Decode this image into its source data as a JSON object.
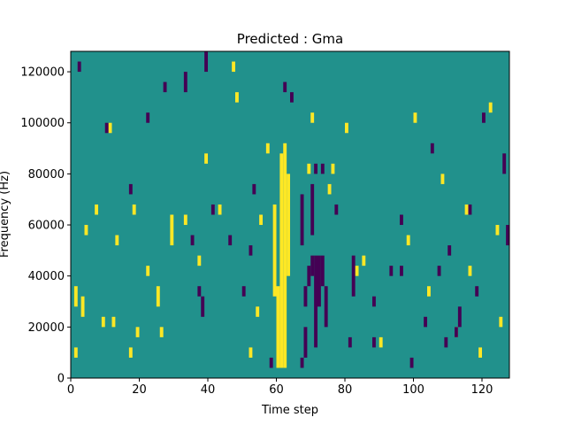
{
  "chart_data": {
    "type": "heatmap",
    "title": "Predicted : Gma",
    "xlabel": "Time step",
    "ylabel": "Frequency (Hz)",
    "xlim": [
      0,
      128
    ],
    "ylim": [
      0,
      128000
    ],
    "x_ticks": [
      0,
      20,
      40,
      60,
      80,
      100,
      120
    ],
    "y_ticks": [
      0,
      20000,
      40000,
      60000,
      80000,
      100000,
      120000
    ],
    "grid": false,
    "legend": "none",
    "cell_size": {
      "time_steps": 1,
      "hz": 4000
    },
    "colors": {
      "background": "#21918c",
      "high": "#fde725",
      "low": "#440154"
    },
    "high_cells": [
      [
        60,
        4000,
        36000
      ],
      [
        61,
        4000,
        88000
      ],
      [
        62,
        4000,
        92000
      ],
      [
        63,
        40000,
        80000
      ],
      [
        59,
        32000,
        68000
      ],
      [
        1,
        8000,
        12000
      ],
      [
        1,
        28000,
        36000
      ],
      [
        3,
        24000,
        32000
      ],
      [
        4,
        56000,
        60000
      ],
      [
        7,
        64000,
        68000
      ],
      [
        9,
        20000,
        24000
      ],
      [
        12,
        20000,
        24000
      ],
      [
        17,
        8000,
        12000
      ],
      [
        18,
        64000,
        68000
      ],
      [
        19,
        16000,
        20000
      ],
      [
        25,
        28000,
        36000
      ],
      [
        26,
        16000,
        20000
      ],
      [
        29,
        52000,
        64000
      ],
      [
        33,
        60000,
        64000
      ],
      [
        37,
        44000,
        48000
      ],
      [
        43,
        64000,
        68000
      ],
      [
        52,
        8000,
        12000
      ],
      [
        54,
        24000,
        28000
      ],
      [
        57,
        88000,
        92000
      ],
      [
        69,
        80000,
        84000
      ],
      [
        75,
        72000,
        76000
      ],
      [
        76,
        80000,
        84000
      ],
      [
        80,
        96000,
        100000
      ],
      [
        85,
        44000,
        48000
      ],
      [
        98,
        52000,
        56000
      ],
      [
        100,
        100000,
        104000
      ],
      [
        108,
        76000,
        80000
      ],
      [
        115,
        64000,
        68000
      ],
      [
        116,
        40000,
        44000
      ],
      [
        122,
        104000,
        108000
      ],
      [
        124,
        56000,
        60000
      ],
      [
        125,
        20000,
        24000
      ],
      [
        22,
        40000,
        44000
      ],
      [
        47,
        120000,
        124000
      ],
      [
        48,
        108000,
        112000
      ],
      [
        11,
        96000,
        100000
      ],
      [
        13,
        52000,
        56000
      ],
      [
        70,
        100000,
        104000
      ],
      [
        83,
        40000,
        44000
      ],
      [
        90,
        12000,
        16000
      ],
      [
        104,
        32000,
        36000
      ],
      [
        112,
        16000,
        20000
      ],
      [
        119,
        8000,
        12000
      ],
      [
        39,
        84000,
        88000
      ],
      [
        55,
        60000,
        64000
      ]
    ],
    "low_cells": [
      [
        68,
        8000,
        20000
      ],
      [
        68,
        28000,
        36000
      ],
      [
        69,
        36000,
        44000
      ],
      [
        70,
        40000,
        48000
      ],
      [
        71,
        12000,
        48000
      ],
      [
        72,
        28000,
        48000
      ],
      [
        73,
        36000,
        48000
      ],
      [
        67,
        52000,
        72000
      ],
      [
        70,
        56000,
        76000
      ],
      [
        67,
        4000,
        8000
      ],
      [
        71,
        80000,
        84000
      ],
      [
        73,
        80000,
        84000
      ],
      [
        74,
        20000,
        36000
      ],
      [
        77,
        64000,
        68000
      ],
      [
        82,
        32000,
        48000
      ],
      [
        88,
        28000,
        32000
      ],
      [
        96,
        60000,
        64000
      ],
      [
        99,
        4000,
        8000
      ],
      [
        103,
        20000,
        24000
      ],
      [
        107,
        40000,
        44000
      ],
      [
        110,
        48000,
        52000
      ],
      [
        113,
        20000,
        28000
      ],
      [
        118,
        32000,
        36000
      ],
      [
        127,
        52000,
        60000
      ],
      [
        126,
        80000,
        88000
      ],
      [
        112,
        16000,
        20000
      ],
      [
        88,
        12000,
        16000
      ],
      [
        62,
        112000,
        116000
      ],
      [
        64,
        108000,
        112000
      ],
      [
        46,
        52000,
        56000
      ],
      [
        38,
        24000,
        32000
      ],
      [
        41,
        64000,
        68000
      ],
      [
        50,
        32000,
        36000
      ],
      [
        52,
        48000,
        52000
      ],
      [
        35,
        52000,
        56000
      ],
      [
        17,
        72000,
        76000
      ],
      [
        22,
        100000,
        104000
      ],
      [
        27,
        112000,
        116000
      ],
      [
        33,
        112000,
        120000
      ],
      [
        39,
        120000,
        128000
      ],
      [
        58,
        4000,
        8000
      ],
      [
        81,
        12000,
        16000
      ],
      [
        93,
        40000,
        44000
      ],
      [
        105,
        88000,
        92000
      ],
      [
        109,
        12000,
        16000
      ],
      [
        120,
        100000,
        104000
      ],
      [
        2,
        120000,
        124000
      ],
      [
        10,
        96000,
        100000
      ],
      [
        96,
        40000,
        44000
      ],
      [
        116,
        64000,
        68000
      ],
      [
        37,
        32000,
        36000
      ],
      [
        53,
        72000,
        76000
      ]
    ]
  }
}
